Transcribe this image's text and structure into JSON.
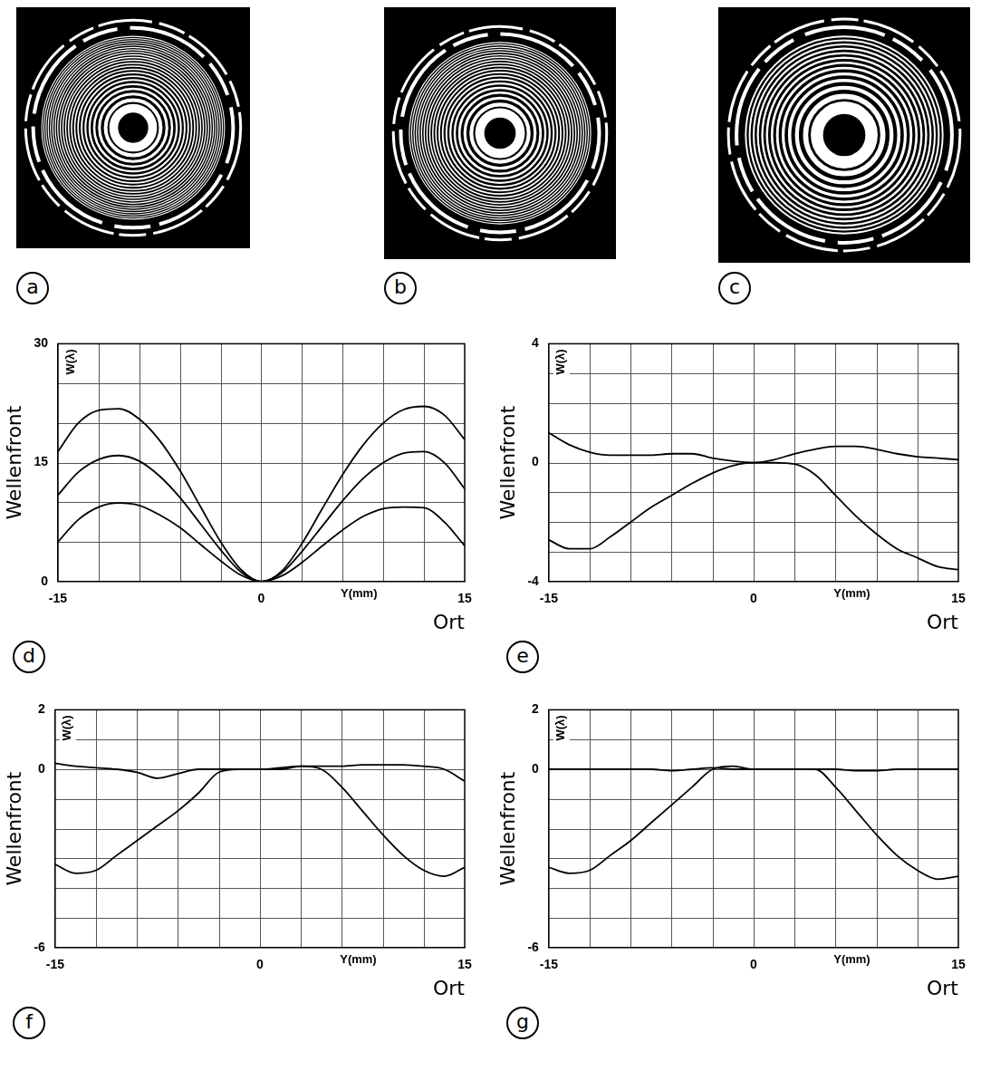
{
  "images": [
    {
      "panel": "a"
    },
    {
      "panel": "b"
    },
    {
      "panel": "c"
    }
  ],
  "chart_data": [
    {
      "type": "line",
      "panel": "d",
      "y_label": "Wellenfront",
      "y_sublabel": "W(λ)",
      "x_label": "Ort",
      "x_sublabel": "Y(mm)",
      "x": [
        -15,
        -13.5,
        -12,
        -10.5,
        -9,
        -7.5,
        -6,
        -4.5,
        -3,
        -1.5,
        0,
        1.5,
        3,
        4.5,
        6,
        7.5,
        9,
        10.5,
        12,
        13.5,
        15
      ],
      "series": [
        {
          "color": "#000000",
          "values": [
            16.4,
            20,
            21.6,
            21.8,
            20.5,
            17.8,
            14,
            9.5,
            5,
            1.5,
            0,
            1.3,
            4.8,
            9.2,
            13.5,
            17.2,
            20,
            21.7,
            22.1,
            21,
            17.9
          ]
        },
        {
          "color": "#000000",
          "values": [
            10.9,
            13.8,
            15.4,
            15.9,
            15.2,
            13.3,
            10.6,
            7.3,
            4,
            1.2,
            0,
            1.1,
            3.8,
            7,
            10.2,
            13,
            15,
            16.2,
            16.4,
            15,
            11.7
          ]
        },
        {
          "color": "#000000",
          "values": [
            5,
            7.8,
            9.4,
            9.9,
            9.6,
            8.4,
            6.8,
            4.7,
            2.6,
            0.8,
            0,
            0.7,
            2.4,
            4.5,
            6.5,
            8.2,
            9.2,
            9.4,
            9.3,
            7.5,
            4.5
          ]
        }
      ],
      "xlim": [
        -15,
        15
      ],
      "xticks": [
        -15,
        0,
        15
      ],
      "ylim": [
        0,
        30
      ],
      "yticks": [
        0,
        15,
        30
      ],
      "grid": true
    },
    {
      "type": "line",
      "panel": "e",
      "y_label": "Wellenfront",
      "y_sublabel": "W(λ)",
      "x_label": "Ort",
      "x_sublabel": "Y(mm)",
      "x": [
        -15,
        -13.5,
        -12,
        -10.5,
        -9,
        -7.5,
        -6,
        -4.5,
        -3,
        -1.5,
        0,
        1.5,
        3,
        4.5,
        6,
        7.5,
        9,
        10.5,
        12,
        13.5,
        15
      ],
      "series": [
        {
          "color": "#000000",
          "values": [
            1.0,
            0.6,
            0.35,
            0.25,
            0.25,
            0.25,
            0.3,
            0.3,
            0.15,
            0.05,
            0,
            0.1,
            0.3,
            0.45,
            0.55,
            0.55,
            0.45,
            0.3,
            0.2,
            0.15,
            0.1
          ]
        },
        {
          "color": "#000000",
          "values": [
            -2.6,
            -2.9,
            -2.9,
            -2.5,
            -2.0,
            -1.5,
            -1.1,
            -0.7,
            -0.35,
            -0.1,
            0,
            0,
            -0.05,
            -0.4,
            -1.1,
            -1.8,
            -2.4,
            -2.9,
            -3.2,
            -3.5,
            -3.6
          ]
        }
      ],
      "xlim": [
        -15,
        15
      ],
      "xticks": [
        -15,
        0,
        15
      ],
      "ylim": [
        -4,
        4
      ],
      "yticks": [
        -4,
        0,
        4
      ],
      "grid": true
    },
    {
      "type": "line",
      "panel": "f",
      "y_label": "Wellenfront",
      "y_sublabel": "W(λ)",
      "x_label": "Ort",
      "x_sublabel": "Y(mm)",
      "x": [
        -15,
        -13.5,
        -12,
        -10.5,
        -9,
        -7.5,
        -6,
        -4.5,
        -3,
        -1.5,
        0,
        1.5,
        3,
        4.5,
        6,
        7.5,
        9,
        10.5,
        12,
        13.5,
        15
      ],
      "series": [
        {
          "color": "#000000",
          "values": [
            0.2,
            0.1,
            0.05,
            0,
            -0.1,
            -0.3,
            -0.15,
            0,
            0,
            0,
            0,
            0.05,
            0.1,
            0.1,
            0.1,
            0.15,
            0.15,
            0.15,
            0.1,
            0,
            -0.4
          ]
        },
        {
          "color": "#000000",
          "values": [
            -3.2,
            -3.5,
            -3.4,
            -2.9,
            -2.4,
            -1.9,
            -1.4,
            -0.8,
            -0.1,
            0,
            0,
            0,
            0.1,
            0,
            -0.6,
            -1.4,
            -2.2,
            -2.9,
            -3.4,
            -3.6,
            -3.3
          ]
        }
      ],
      "xlim": [
        -15,
        15
      ],
      "xticks": [
        -15,
        0,
        15
      ],
      "ylim": [
        -6,
        2
      ],
      "yticks": [
        -6,
        0,
        2
      ],
      "grid": true
    },
    {
      "type": "line",
      "panel": "g",
      "y_label": "Wellenfront",
      "y_sublabel": "W(λ)",
      "x_label": "Ort",
      "x_sublabel": "Y(mm)",
      "x": [
        -15,
        -13.5,
        -12,
        -10.5,
        -9,
        -7.5,
        -6,
        -4.5,
        -3,
        -1.5,
        0,
        1.5,
        3,
        4.5,
        6,
        7.5,
        9,
        10.5,
        12,
        13.5,
        15
      ],
      "series": [
        {
          "color": "#000000",
          "values": [
            0,
            0,
            0,
            0,
            0,
            0,
            -0.05,
            0,
            0.05,
            0,
            0,
            0,
            0,
            0,
            0,
            -0.05,
            -0.05,
            0,
            0,
            0,
            0
          ]
        },
        {
          "color": "#000000",
          "values": [
            -3.3,
            -3.5,
            -3.4,
            -2.9,
            -2.4,
            -1.8,
            -1.2,
            -0.6,
            0,
            0.1,
            0,
            0,
            0,
            0,
            -0.6,
            -1.4,
            -2.2,
            -2.9,
            -3.4,
            -3.7,
            -3.6
          ]
        }
      ],
      "xlim": [
        -15,
        15
      ],
      "xticks": [
        -15,
        0,
        15
      ],
      "ylim": [
        -6,
        2
      ],
      "yticks": [
        -6,
        0,
        2
      ],
      "grid": true
    }
  ]
}
